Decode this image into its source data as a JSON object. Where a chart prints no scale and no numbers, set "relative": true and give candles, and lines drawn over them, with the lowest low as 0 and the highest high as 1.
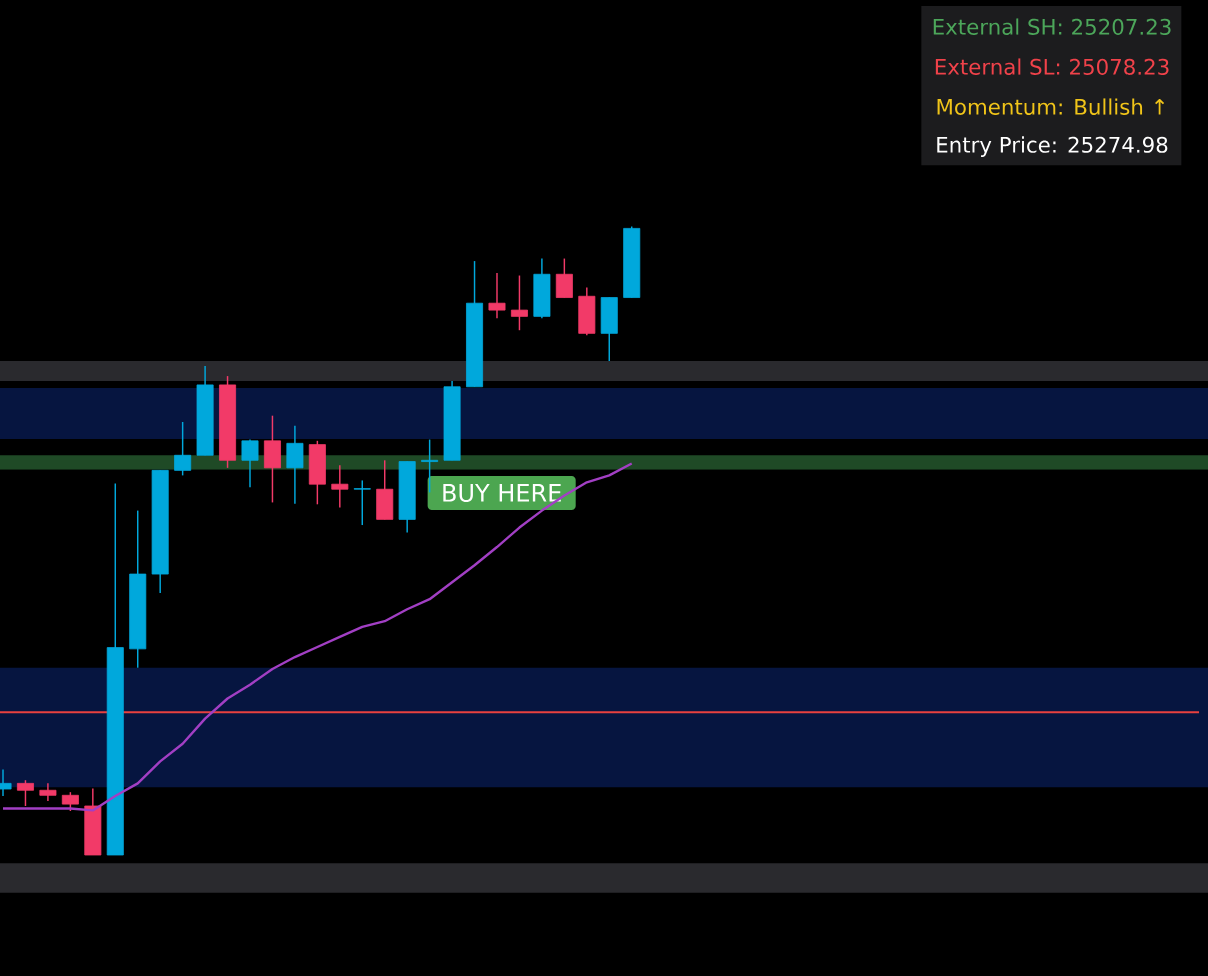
{
  "chart_data": {
    "type": "candlestick",
    "relative": true,
    "categories": [
      null,
      null,
      null,
      null,
      null,
      null,
      null,
      null,
      null,
      null,
      null,
      null,
      null,
      null,
      null,
      null,
      null,
      null,
      null,
      null,
      null,
      null,
      null,
      null,
      null,
      null,
      null,
      null,
      null
    ],
    "ohlc": [
      [
        0.105,
        0.136,
        0.094,
        0.114
      ],
      [
        0.114,
        0.119,
        0.078,
        0.103
      ],
      [
        0.103,
        0.114,
        0.086,
        0.095
      ],
      [
        0.095,
        0.1,
        0.07,
        0.081
      ],
      [
        0.078,
        0.106,
        0,
        0
      ],
      [
        0,
        0.591,
        0,
        0.33
      ],
      [
        0.328,
        0.548,
        0.298,
        0.447
      ],
      [
        0.447,
        0.612,
        0.417,
        0.612
      ],
      [
        0.612,
        0.689,
        0.604,
        0.636
      ],
      [
        0.636,
        0.778,
        0.636,
        0.748
      ],
      [
        0.748,
        0.762,
        0.616,
        0.628
      ],
      [
        0.628,
        0.661,
        0.585,
        0.659
      ],
      [
        0.659,
        0.699,
        0.561,
        0.616
      ],
      [
        0.616,
        0.683,
        0.559,
        0.655
      ],
      [
        0.653,
        0.659,
        0.558,
        0.59
      ],
      [
        0.59,
        0.62,
        0.553,
        0.582
      ],
      [
        0.582,
        0.596,
        0.525,
        0.583
      ],
      [
        0.582,
        0.628,
        0.534,
        0.534
      ],
      [
        0.534,
        0.626,
        0.513,
        0.626
      ],
      [
        0.626,
        0.661,
        0.577,
        0.628
      ],
      [
        0.628,
        0.754,
        0.628,
        0.745
      ],
      [
        0.745,
        0.945,
        0.745,
        0.878
      ],
      [
        0.878,
        0.926,
        0.854,
        0.867
      ],
      [
        0.867,
        0.922,
        0.835,
        0.857
      ],
      [
        0.857,
        0.949,
        0.854,
        0.924
      ],
      [
        0.924,
        0.949,
        0.887,
        0.887
      ],
      [
        0.889,
        0.903,
        0.827,
        0.83
      ],
      [
        0.83,
        0.887,
        0.786,
        0.887
      ],
      [
        0.887,
        1,
        0.887,
        0.997
      ]
    ],
    "colors": [
      "#00a8dc",
      "#f23a68",
      "#f23a68",
      "#f23a68",
      "#f23a68",
      "#00a8dc",
      "#00a8dc",
      "#00a8dc",
      "#00a8dc",
      "#00a8dc",
      "#f23a68",
      "#00a8dc",
      "#f23a68",
      "#00a8dc",
      "#f23a68",
      "#f23a68",
      "#00a8dc",
      "#f23a68",
      "#00a8dc",
      "#00a8dc",
      "#00a8dc",
      "#00a8dc",
      "#f23a68",
      "#f23a68",
      "#00a8dc",
      "#f23a68",
      "#f23a68",
      "#00a8dc",
      "#00a8dc"
    ],
    "series": [
      {
        "type": "line",
        "color": "#a23fc4",
        "values": [
          0.074,
          0.074,
          0.074,
          0.074,
          0.071,
          0.094,
          0.114,
          0.149,
          0.177,
          0.217,
          0.249,
          0.271,
          0.296,
          0.315,
          0.331,
          0.347,
          0.363,
          0.372,
          0.391,
          0.407,
          0.434,
          0.461,
          0.49,
          0.521,
          0.548,
          0.572,
          0.593,
          0.604,
          0.623
        ]
      }
    ],
    "bands": [
      {
        "axis": "y",
        "from": -0.06,
        "to": -0.013,
        "color": "#2a2a2e"
      },
      {
        "axis": "y",
        "from": 0.108,
        "to": 0.298,
        "color": "#061540"
      },
      {
        "axis": "y",
        "from": 0.662,
        "to": 0.743,
        "color": "#061540"
      },
      {
        "axis": "y",
        "from": 0.754,
        "to": 0.786,
        "color": "#2a2a2e"
      },
      {
        "axis": "y",
        "from": 0.613,
        "to": 0.636,
        "color": "#1f4a26"
      }
    ],
    "ref_lines": [
      {
        "axis": "y",
        "value": 0.227,
        "color": "#e8413f"
      }
    ],
    "annotations": [
      "BUY HERE",
      "External SH: 25207.23",
      "External SL: 25078.23",
      "Momentum: Bullish ↑",
      "Entry Price: 25274.98"
    ]
  }
}
